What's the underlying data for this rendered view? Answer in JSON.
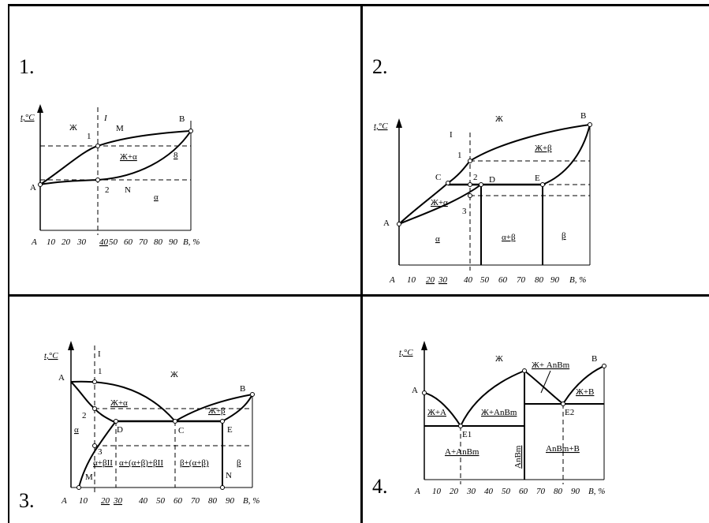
{
  "panels": [
    {
      "number": "1.",
      "axis_t": "t,°C",
      "axis_x": [
        "A",
        "10",
        "20",
        "30",
        "40",
        "50",
        "60",
        "70",
        "80",
        "90",
        "B, %"
      ],
      "labels": {
        "zh": "Ж",
        "i": "I",
        "m": "M",
        "b": "B",
        "one": "1",
        "zh_alpha": "Ж+α",
        "a": "A",
        "two": "2",
        "n": "N",
        "alpha": "α",
        "small_b": "8"
      }
    },
    {
      "number": "2.",
      "axis_t": "t,°C",
      "axis_x": [
        "A",
        "10",
        "20",
        "30",
        "40",
        "50",
        "60",
        "70",
        "80",
        "90",
        "B, %"
      ],
      "labels": {
        "zh": "Ж",
        "b": "B",
        "i": "I",
        "one": "1",
        "zh_beta": "Ж+β",
        "c": "C",
        "two": "2",
        "d": "D",
        "e": "E",
        "zh_alpha": "Ж+α",
        "three": "3",
        "a": "A",
        "alpha": "α",
        "alpha_beta": "α+β",
        "beta": "β"
      }
    },
    {
      "number": "3.",
      "axis_t": "t,°C",
      "axis_x": [
        "A",
        "10",
        "20",
        "30",
        "40",
        "50",
        "60",
        "70",
        "80",
        "90",
        "B, %"
      ],
      "labels": {
        "i": "I",
        "one": "1",
        "zh": "Ж",
        "a": "A",
        "b": "B",
        "zh_alpha": "Ж+α",
        "zh_beta": "Ж+β",
        "two": "2",
        "alpha": "α",
        "d": "D",
        "c": "C",
        "e": "E",
        "three": "3",
        "r1": "α+βII",
        "r2": "α+(α+β)+βII",
        "r3": "β+(α+β)",
        "beta": "β",
        "m": "M",
        "n": "N"
      }
    },
    {
      "number": "4.",
      "axis_t": "t,°C",
      "axis_x": [
        "A",
        "10",
        "20",
        "30",
        "40",
        "50",
        "60",
        "70",
        "80",
        "90",
        "B, %"
      ],
      "labels": {
        "zh": "Ж",
        "zh_anbm": "Ж+ AnBm",
        "b": "B",
        "a": "A",
        "zh_b": "Ж+B",
        "zh_a": "Ж+A",
        "zh_anbm2": "Ж+AnBm",
        "e1": "E1",
        "e2": "E2",
        "a_anbm": "A+AnBm",
        "anbm_v": "AnBm",
        "anbm_b": "AnBm+B"
      }
    }
  ]
}
